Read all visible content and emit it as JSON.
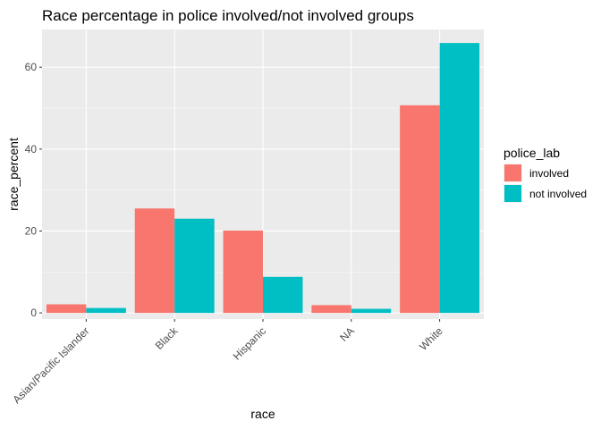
{
  "chart_data": {
    "type": "bar",
    "title": "Race percentage in police involved/not involved groups",
    "xlabel": "race",
    "ylabel": "race_percent",
    "categories": [
      "Asian/Pacific Islander",
      "Black",
      "Hispanic",
      "NA",
      "White"
    ],
    "series": [
      {
        "name": "involved",
        "color": "#F8766D",
        "values": [
          2.1,
          25.5,
          20.1,
          1.9,
          50.7
        ]
      },
      {
        "name": "not involved",
        "color": "#00BFC4",
        "values": [
          1.2,
          23.0,
          8.8,
          1.0,
          65.9
        ]
      }
    ],
    "ylim": [
      -1.5,
      69.2
    ],
    "yticks": [
      0,
      20,
      40,
      60
    ],
    "grid": true,
    "panel_background": "#EBEBEB",
    "legend": {
      "title": "police_lab",
      "position": "right"
    }
  }
}
